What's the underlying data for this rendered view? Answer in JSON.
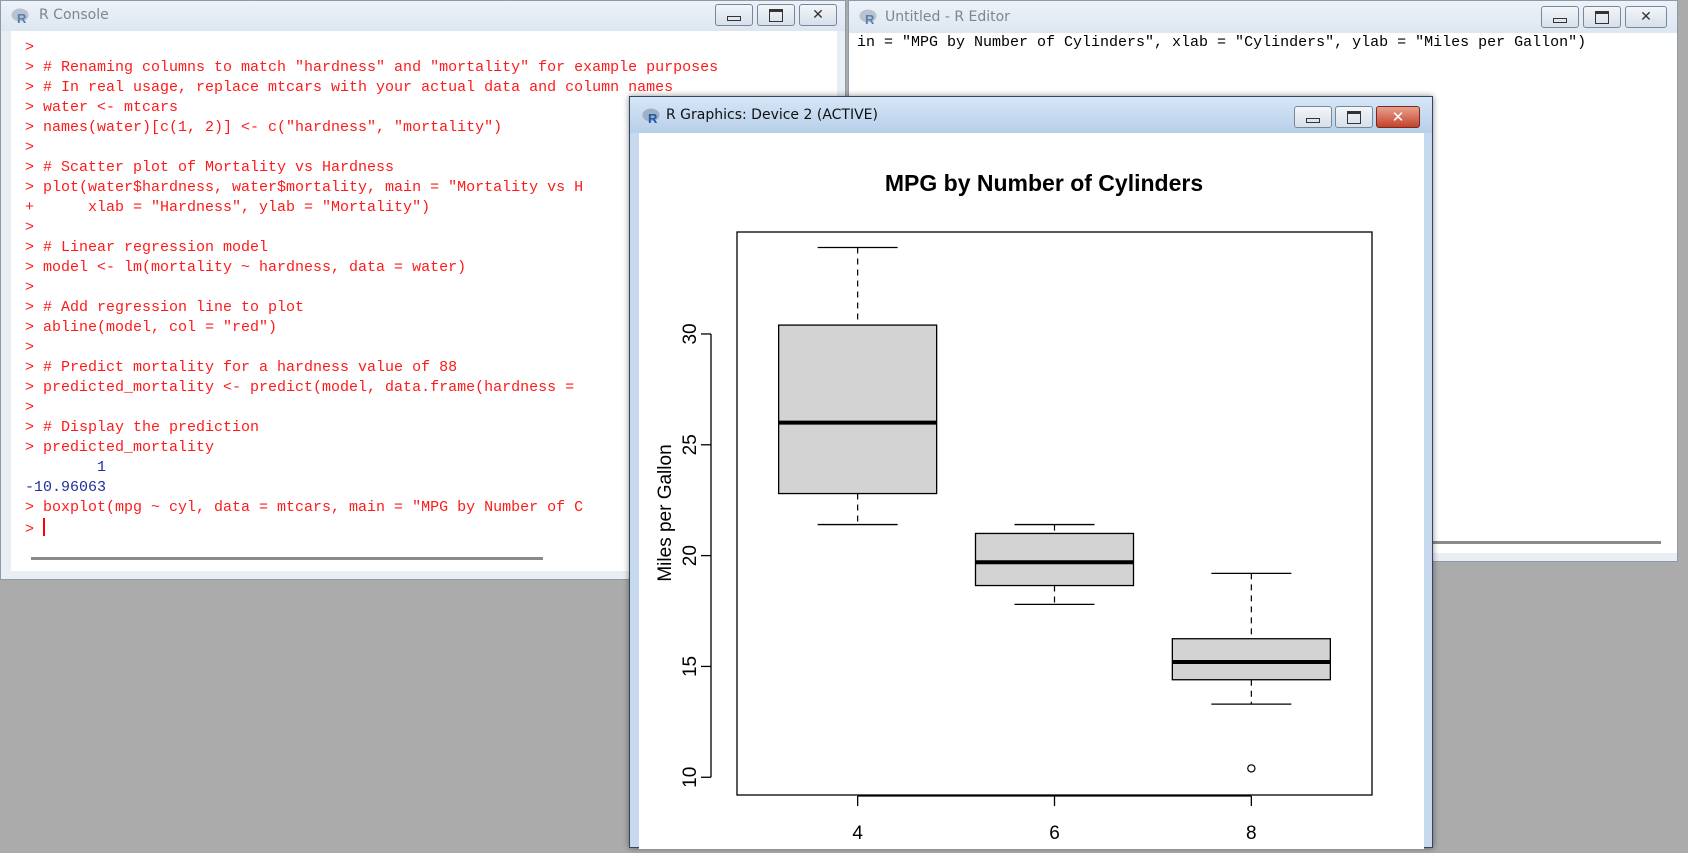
{
  "console": {
    "title": "R Console",
    "lines": [
      ">",
      "> # Renaming columns to match \"hardness\" and \"mortality\" for example purposes",
      "> # In real usage, replace mtcars with your actual data and column names",
      "> water <- mtcars",
      "> names(water)[c(1, 2)] <- c(\"hardness\", \"mortality\")",
      ">",
      "> # Scatter plot of Mortality vs Hardness",
      "> plot(water$hardness, water$mortality, main = \"Mortality vs H",
      "+      xlab = \"Hardness\", ylab = \"Mortality\")",
      ">",
      "> # Linear regression model",
      "> model <- lm(mortality ~ hardness, data = water)",
      ">",
      "> # Add regression line to plot",
      "> abline(model, col = \"red\")",
      ">",
      "> # Predict mortality for a hardness value of 88",
      "> predicted_mortality <- predict(model, data.frame(hardness = ",
      ">",
      "> # Display the prediction",
      "> predicted_mortality",
      "        1",
      "-10.96063",
      "> boxplot(mpg ~ cyl, data = mtcars, main = \"MPG by Number of C",
      "> "
    ]
  },
  "editor": {
    "title": "Untitled - R Editor",
    "line": "in = \"MPG by Number of Cylinders\", xlab = \"Cylinders\", ylab = \"Miles per Gallon\")"
  },
  "graphics": {
    "title": "R Graphics: Device 2 (ACTIVE)"
  },
  "colors": {
    "console_text": "#ff1a1a",
    "console_output": "#1f2f9e",
    "box_fill": "#d3d3d3",
    "close_button": "#c4432b"
  },
  "icons": {
    "app": "r-logo-icon",
    "minimize": "minimize-icon",
    "maximize": "maximize-icon",
    "close": "close-icon"
  },
  "chart_data": {
    "type": "boxplot",
    "title": "MPG by Number of Cylinders",
    "xlabel": "",
    "ylabel": "Miles per Gallon",
    "categories": [
      "4",
      "6",
      "8"
    ],
    "ylim": [
      9.2,
      34.6
    ],
    "yticks": [
      10,
      15,
      20,
      25,
      30
    ],
    "boxes": [
      {
        "category": "4",
        "min": 21.4,
        "q1": 22.8,
        "median": 26.0,
        "q3": 30.4,
        "max": 33.9,
        "outliers": []
      },
      {
        "category": "6",
        "min": 17.8,
        "q1": 18.65,
        "median": 19.7,
        "q3": 21.0,
        "max": 21.4,
        "outliers": []
      },
      {
        "category": "8",
        "min": 13.3,
        "q1": 14.4,
        "median": 15.2,
        "q3": 16.25,
        "max": 19.2,
        "outliers": [
          10.4
        ]
      }
    ],
    "grid": false
  }
}
